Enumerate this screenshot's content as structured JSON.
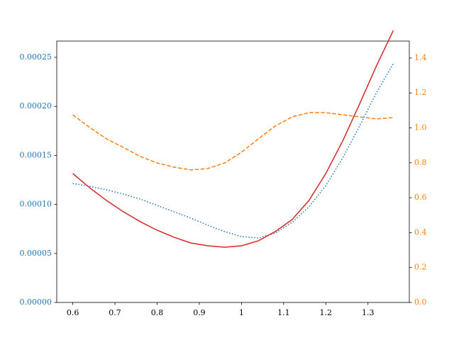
{
  "chart_data": {
    "type": "line",
    "x": [
      0.6,
      0.64,
      0.68,
      0.72,
      0.76,
      0.8,
      0.84,
      0.88,
      0.92,
      0.96,
      1.0,
      1.04,
      1.08,
      1.12,
      1.16,
      1.2,
      1.24,
      1.28,
      1.32,
      1.36
    ],
    "series": [
      {
        "color": "#1f77b4",
        "dash": "dotted",
        "values": [
          0.0001214,
          0.0001185,
          0.0001149,
          0.0001105,
          0.0001055,
          9.9e-05,
          9.25e-05,
          8.6e-05,
          7.88e-05,
          7.23e-05,
          6.72e-05,
          6.57e-05,
          7.08e-05,
          8.16e-05,
          9.75e-05,
          0.0001192,
          0.0001474,
          0.0001799,
          0.0002139,
          0.0002435
        ]
      },
      {
        "color": "#ff7f0e",
        "dash": "dashed",
        "axis": "y2",
        "values": [
          1.075,
          1.002,
          0.937,
          0.888,
          0.836,
          0.799,
          0.775,
          0.759,
          0.767,
          0.799,
          0.86,
          0.937,
          1.01,
          1.063,
          1.087,
          1.087,
          1.075,
          1.063,
          1.051,
          1.059
        ]
      },
      {
        "color": "#d62728",
        "dash": "solid",
        "values": [
          0.0001315,
          0.000117,
          0.000104,
          9.25e-05,
          8.24e-05,
          7.37e-05,
          6.65e-05,
          6.07e-05,
          5.78e-05,
          5.64e-05,
          5.78e-05,
          6.29e-05,
          7.23e-05,
          8.45e-05,
          0.000104,
          0.0001315,
          0.0001647,
          0.0002023,
          0.0002413,
          0.0002774
        ]
      }
    ],
    "xlim": [
      0.562,
      1.398
    ],
    "xticks": [
      0.6,
      0.7,
      0.8,
      0.9,
      1.0,
      1.1,
      1.2,
      1.3
    ],
    "ylim": [
      0,
      0.0002666
    ],
    "yticks": [
      {
        "value": 0,
        "label": "0.00000"
      },
      {
        "value": 5e-05,
        "label": "0.00005"
      },
      {
        "value": 0.0001,
        "label": "0.00010"
      },
      {
        "value": 0.00015,
        "label": "0.00015"
      },
      {
        "value": 0.0002,
        "label": "0.00020"
      },
      {
        "value": 0.00025,
        "label": "0.00025"
      }
    ],
    "y_tick_color": "#1f77b4",
    "y2lim": [
      0,
      1.497
    ],
    "y2ticks": [
      {
        "value": 0,
        "label": "0.0"
      },
      {
        "value": 0.2,
        "label": "0.2"
      },
      {
        "value": 0.4,
        "label": "0.4"
      },
      {
        "value": 0.6,
        "label": "0.6"
      },
      {
        "value": 0.8,
        "label": "0.8"
      },
      {
        "value": 1.0,
        "label": "1.0"
      },
      {
        "value": 1.2,
        "label": "1.2"
      },
      {
        "value": 1.4,
        "label": "1.4"
      }
    ],
    "y2_tick_color": "#ff7f0e"
  }
}
